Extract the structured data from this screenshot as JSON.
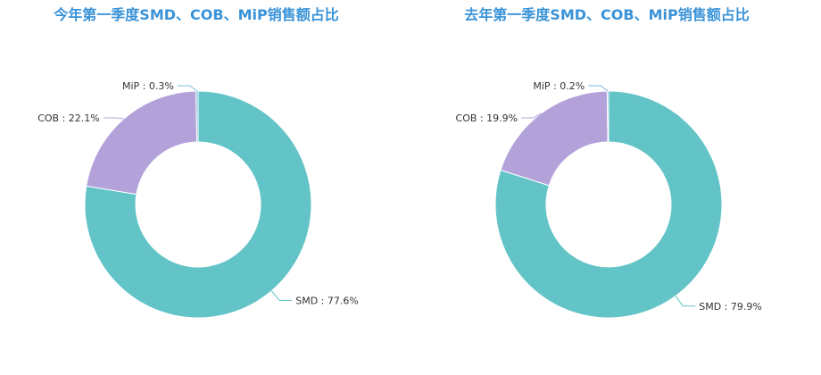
{
  "colors": {
    "title": "#3a93d8",
    "label_text": "#333333",
    "SMD": "#63c4c7",
    "COB": "#b3a2da",
    "MiP": "#7bb8e0"
  },
  "chart_data": [
    {
      "type": "pie",
      "style": "donut",
      "title": "今年第一季度SMD、COB、MiP销售额占比",
      "slices": [
        {
          "name": "SMD",
          "value": 77.6,
          "label": "SMD : 77.6%"
        },
        {
          "name": "COB",
          "value": 22.1,
          "label": "COB : 22.1%"
        },
        {
          "name": "MiP",
          "value": 0.3,
          "label": "MiP : 0.3%"
        }
      ]
    },
    {
      "type": "pie",
      "style": "donut",
      "title": "去年第一季度SMD、COB、MiP销售额占比",
      "slices": [
        {
          "name": "SMD",
          "value": 79.9,
          "label": "SMD : 79.9%"
        },
        {
          "name": "COB",
          "value": 19.9,
          "label": "COB : 19.9%"
        },
        {
          "name": "MiP",
          "value": 0.2,
          "label": "MiP : 0.2%"
        }
      ]
    }
  ]
}
